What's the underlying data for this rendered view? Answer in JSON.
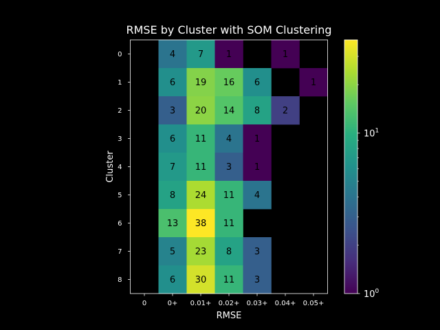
{
  "chart_data": {
    "type": "heatmap",
    "title": "RMSE by Cluster with SOM Clustering",
    "xlabel": "RMSE",
    "ylabel": "Cluster",
    "x_categories": [
      "0",
      "0+",
      "0.01+",
      "0.02+",
      "0.03+",
      "0.04+",
      "0.05+"
    ],
    "y_categories": [
      "0",
      "1",
      "2",
      "3",
      "4",
      "5",
      "6",
      "7",
      "8"
    ],
    "values": [
      [
        null,
        4,
        7,
        1,
        null,
        1,
        null
      ],
      [
        null,
        6,
        19,
        16,
        6,
        null,
        1
      ],
      [
        null,
        3,
        20,
        14,
        8,
        2,
        null
      ],
      [
        null,
        6,
        11,
        4,
        1,
        null,
        null
      ],
      [
        null,
        7,
        11,
        3,
        1,
        null,
        null
      ],
      [
        null,
        8,
        24,
        11,
        4,
        null,
        null
      ],
      [
        null,
        13,
        38,
        11,
        null,
        null,
        null
      ],
      [
        null,
        5,
        23,
        8,
        3,
        null,
        null
      ],
      [
        null,
        6,
        30,
        11,
        3,
        null,
        null
      ]
    ],
    "colormap": "viridis",
    "color_scale": "log",
    "color_range": [
      1,
      38
    ],
    "colorbar_ticks": [
      {
        "value": 1,
        "base": "10",
        "exp": "0"
      },
      {
        "value": 10,
        "base": "10",
        "exp": "1"
      }
    ],
    "background_color": "#000000",
    "text_color": "#ffffff",
    "grid": false
  }
}
